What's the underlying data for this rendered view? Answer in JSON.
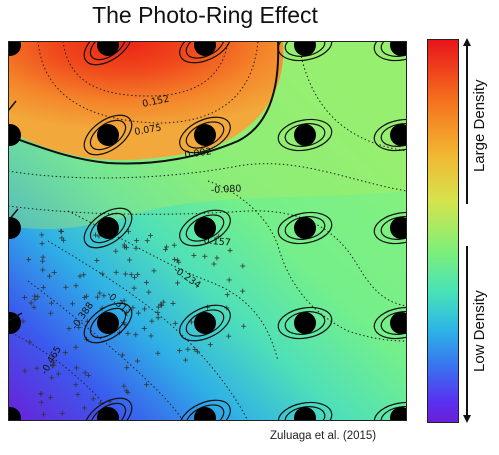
{
  "figure": {
    "title": "The Photo-Ring Effect",
    "credit": "Zuluaga et al. (2015)"
  },
  "colorbar": {
    "top_label": "Large Density",
    "bottom_label": "Low Density"
  },
  "contour_labels": [
    "0.152",
    "0.075",
    "0.002",
    "-0.080",
    "-0.157",
    "-0.234",
    "-0.311",
    "-0.388",
    "-0.465"
  ],
  "colors": {
    "high": "#e8141b",
    "mid": "#7fef78",
    "low": "#6a1fd8"
  }
}
